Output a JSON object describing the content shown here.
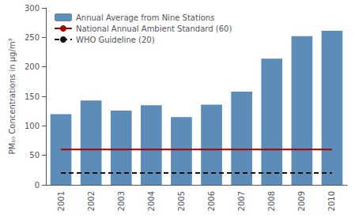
{
  "chart_data": {
    "type": "bar",
    "ylabel": "PM₁₀ Concentrations in μg/m³",
    "categories": [
      "2001",
      "2002",
      "2003",
      "2004",
      "2005",
      "2006",
      "2007",
      "2008",
      "2009",
      "2010"
    ],
    "series": [
      {
        "name": "Annual Average from Nine Stations",
        "type": "bar",
        "color": "#5b8db8",
        "values": [
          120,
          143,
          126,
          135,
          115,
          136,
          158,
          214,
          252,
          261
        ]
      },
      {
        "name": "National Annual Ambient Standard (60)",
        "type": "line",
        "color": "#a80000",
        "line_style": "solid",
        "values": [
          60,
          60,
          60,
          60,
          60,
          60,
          60,
          60,
          60,
          60
        ]
      },
      {
        "name": "WHO Guideline (20)",
        "type": "line",
        "color": "#111111",
        "line_style": "dashed",
        "values": [
          20,
          20,
          20,
          20,
          20,
          20,
          20,
          20,
          20,
          20
        ]
      }
    ],
    "ylim": [
      0,
      300
    ],
    "yticks": [
      0,
      50,
      100,
      150,
      200,
      250,
      300
    ],
    "grid": false,
    "legend": "upper left"
  }
}
